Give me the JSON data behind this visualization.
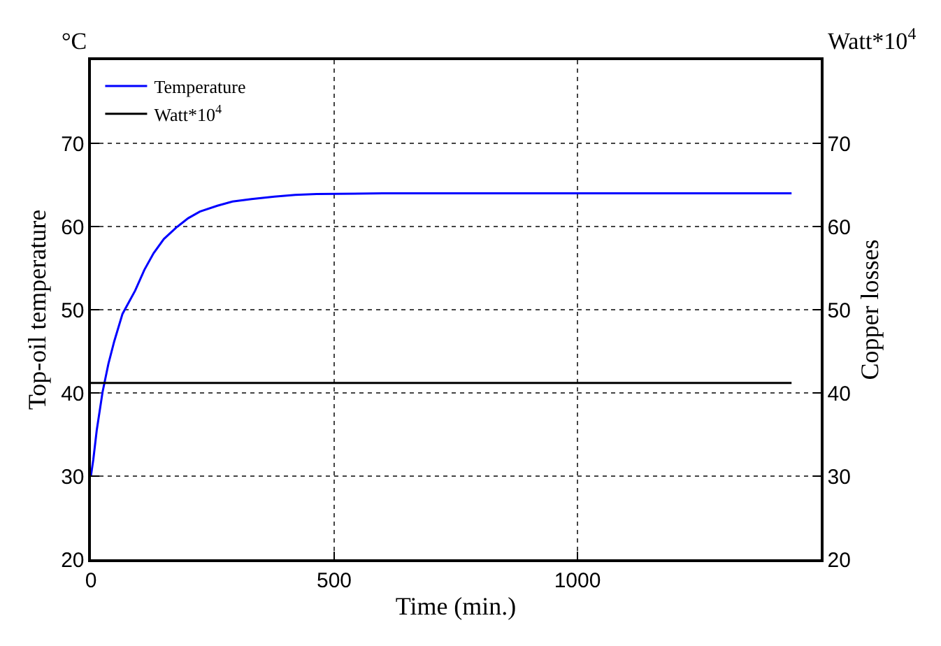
{
  "chart_data": {
    "type": "line",
    "xlabel": "Time (min.)",
    "ylabel": "Top-oil temperature",
    "y2label": "Copper losses",
    "annotations": [
      "°C",
      "Watt*10$^{4}$"
    ],
    "series": [
      {
        "name": "Temperature",
        "color": "#0000ff",
        "x": [
          0,
          5,
          12,
          24,
          36,
          48,
          65,
          91,
          110,
          129,
          150,
          176,
          200,
          224,
          260,
          291,
          330,
          377,
          420,
          464,
          600,
          800,
          1000,
          1200,
          1440
        ],
        "values": [
          30.0,
          32.0,
          35.5,
          40.1,
          43.5,
          46.2,
          49.5,
          52.3,
          54.8,
          56.8,
          58.5,
          59.9,
          61.0,
          61.8,
          62.5,
          63.0,
          63.3,
          63.6,
          63.8,
          63.9,
          64.0,
          64.0,
          64.0,
          64.0,
          64.0
        ]
      },
      {
        "name": "Watt*10$^{4}$",
        "color": "#000000",
        "axis": "y2",
        "x": [
          0,
          1440
        ],
        "values": [
          41.2,
          41.2
        ]
      }
    ],
    "xlim": [
      0,
      1500
    ],
    "xticks": [
      0,
      500,
      1000
    ],
    "ylim": [
      20,
      80
    ],
    "yticks": [
      20,
      30,
      40,
      50,
      60,
      70
    ],
    "y2lim": [
      20,
      80
    ],
    "y2ticks": [
      20,
      30,
      40,
      50,
      60,
      70
    ],
    "grid": true,
    "legend": "top left",
    "line_style": "solid",
    "marker": "none"
  }
}
